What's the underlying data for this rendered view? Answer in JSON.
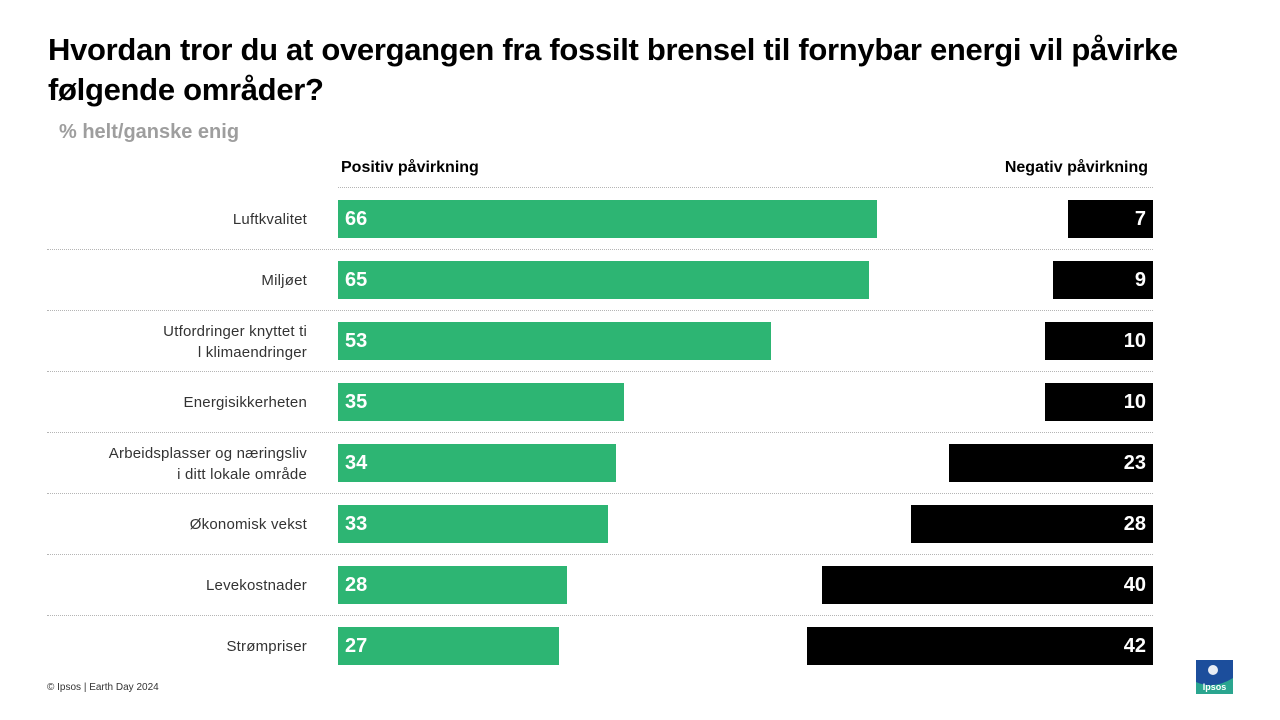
{
  "title": "Hvordan tror du at overgangen fra fossilt brensel til fornybar energi vil påvirke følgende områder?",
  "subtitle": "% helt/ganske enig",
  "footer": "© Ipsos | Earth Day 2024",
  "logo_text": "Ipsos",
  "colors": {
    "positive": "#2db573",
    "negative": "#000000"
  },
  "chart_data": {
    "type": "bar",
    "orientation": "horizontal-diverging",
    "title": "Hvordan tror du at overgangen fra fossilt brensel til fornybar energi vil påvirke følgende områder?",
    "subtitle": "% helt/ganske enig",
    "xlim": [
      0,
      100
    ],
    "categories": [
      "Luftkvalitet",
      "Miljøet",
      "Utfordringer knyttet til klimaendringer",
      "Energisikkerheten",
      "Arbeidsplasser og næringsliv i ditt lokale område",
      "Økonomisk vekst",
      "Levekostnader",
      "Strømpriser"
    ],
    "series": [
      {
        "name": "Positiv påvirkning",
        "values": [
          66,
          65,
          53,
          35,
          34,
          33,
          28,
          27
        ]
      },
      {
        "name": "Negativ påvirkning",
        "values": [
          7,
          9,
          10,
          10,
          23,
          28,
          40,
          42
        ]
      }
    ]
  }
}
